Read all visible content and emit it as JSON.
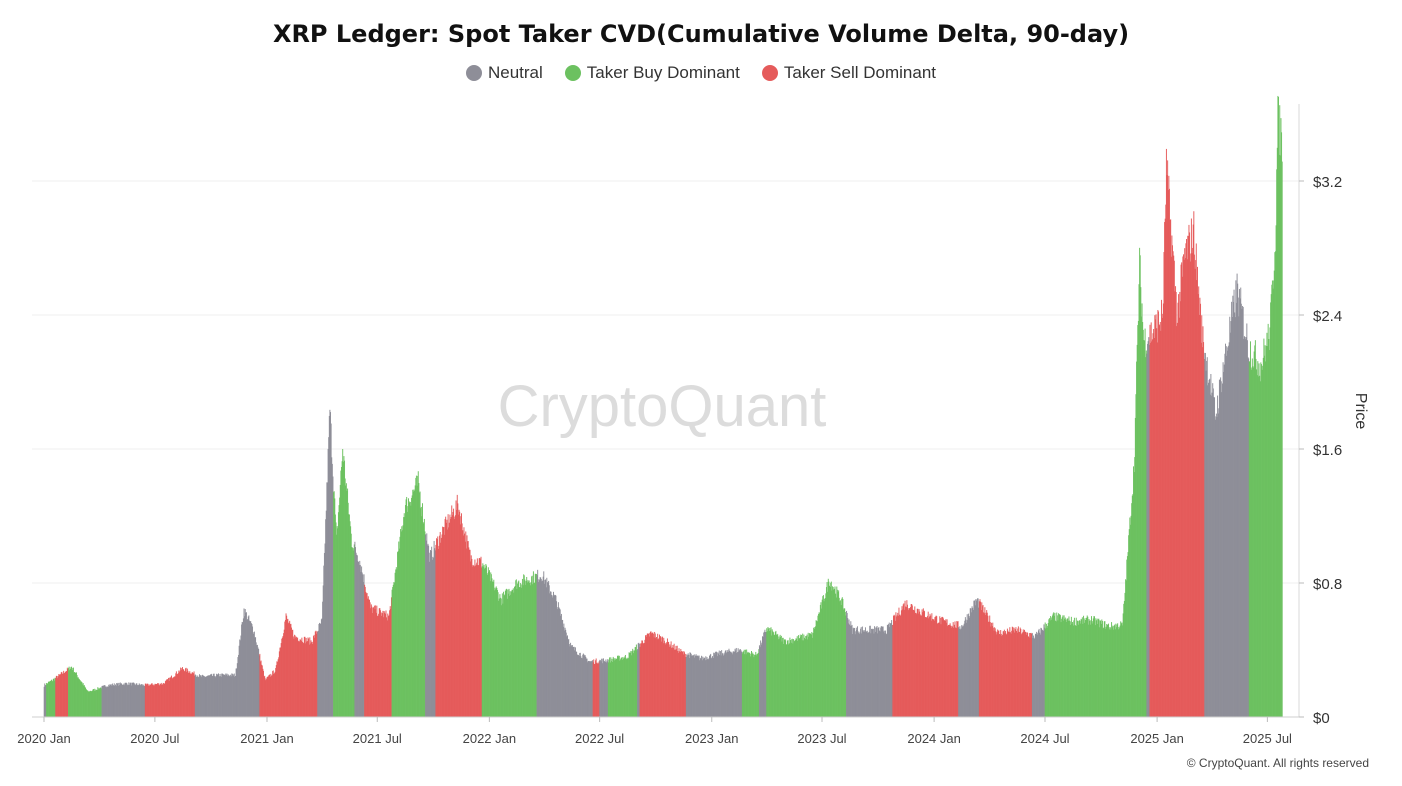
{
  "chart_data": {
    "type": "bar",
    "title": "XRP Ledger: Spot Taker CVD(Cumulative Volume Delta, 90-day)",
    "ylabel": "Price",
    "ylim": [
      0,
      3.6
    ],
    "y_ticks": [
      "$0",
      "$0.8",
      "$1.6",
      "$2.4",
      "$3.2"
    ],
    "y_tick_values": [
      0,
      0.8,
      1.6,
      2.4,
      3.2
    ],
    "x_ticks": [
      "2020 Jan",
      "2020 Jul",
      "2021 Jan",
      "2021 Jul",
      "2022 Jan",
      "2022 Jul",
      "2023 Jan",
      "2023 Jul",
      "2024 Jan",
      "2024 Jul",
      "2025 Jan",
      "2025 Jul"
    ],
    "x_tick_dates": [
      "2020-01-01",
      "2020-07-01",
      "2021-01-01",
      "2021-07-01",
      "2022-01-01",
      "2022-07-01",
      "2023-01-01",
      "2023-07-01",
      "2024-01-01",
      "2024-07-01",
      "2025-01-01",
      "2025-07-01"
    ],
    "x_range": [
      "2020-01-01",
      "2025-07-25"
    ],
    "grid": true,
    "legend_position": "top",
    "legend": [
      {
        "name": "Neutral",
        "color": "#8e8e98"
      },
      {
        "name": "Taker Buy Dominant",
        "color": "#6cc160"
      },
      {
        "name": "Taker Sell Dominant",
        "color": "#e55b5b"
      }
    ],
    "watermark": "CryptoQuant",
    "price_points": [
      [
        "2020-01-01",
        0.19
      ],
      [
        "2020-01-15",
        0.22
      ],
      [
        "2020-02-15",
        0.3
      ],
      [
        "2020-03-13",
        0.15
      ],
      [
        "2020-04-15",
        0.19
      ],
      [
        "2020-05-15",
        0.2
      ],
      [
        "2020-06-15",
        0.19
      ],
      [
        "2020-07-15",
        0.2
      ],
      [
        "2020-08-15",
        0.29
      ],
      [
        "2020-09-15",
        0.24
      ],
      [
        "2020-10-15",
        0.25
      ],
      [
        "2020-11-10",
        0.25
      ],
      [
        "2020-11-24",
        0.64
      ],
      [
        "2020-12-10",
        0.52
      ],
      [
        "2020-12-29",
        0.22
      ],
      [
        "2021-01-15",
        0.28
      ],
      [
        "2021-02-01",
        0.6
      ],
      [
        "2021-02-15",
        0.48
      ],
      [
        "2021-03-15",
        0.45
      ],
      [
        "2021-04-01",
        0.57
      ],
      [
        "2021-04-14",
        1.84
      ],
      [
        "2021-04-25",
        1.05
      ],
      [
        "2021-05-05",
        1.6
      ],
      [
        "2021-05-20",
        1.05
      ],
      [
        "2021-06-01",
        0.95
      ],
      [
        "2021-06-20",
        0.65
      ],
      [
        "2021-07-20",
        0.6
      ],
      [
        "2021-08-15",
        1.25
      ],
      [
        "2021-09-06",
        1.4
      ],
      [
        "2021-09-25",
        0.95
      ],
      [
        "2021-10-15",
        1.1
      ],
      [
        "2021-11-10",
        1.27
      ],
      [
        "2021-12-01",
        0.95
      ],
      [
        "2021-12-20",
        0.92
      ],
      [
        "2022-01-01",
        0.84
      ],
      [
        "2022-01-20",
        0.7
      ],
      [
        "2022-02-15",
        0.8
      ],
      [
        "2022-03-28",
        0.85
      ],
      [
        "2022-04-20",
        0.7
      ],
      [
        "2022-05-15",
        0.42
      ],
      [
        "2022-06-15",
        0.33
      ],
      [
        "2022-07-15",
        0.34
      ],
      [
        "2022-08-15",
        0.36
      ],
      [
        "2022-09-23",
        0.5
      ],
      [
        "2022-10-15",
        0.46
      ],
      [
        "2022-11-15",
        0.38
      ],
      [
        "2022-12-15",
        0.35
      ],
      [
        "2023-01-15",
        0.38
      ],
      [
        "2023-02-15",
        0.4
      ],
      [
        "2023-03-15",
        0.37
      ],
      [
        "2023-04-01",
        0.53
      ],
      [
        "2023-05-01",
        0.45
      ],
      [
        "2023-06-15",
        0.49
      ],
      [
        "2023-07-13",
        0.82
      ],
      [
        "2023-08-01",
        0.7
      ],
      [
        "2023-08-20",
        0.52
      ],
      [
        "2023-10-15",
        0.52
      ],
      [
        "2023-11-15",
        0.68
      ],
      [
        "2023-12-15",
        0.62
      ],
      [
        "2024-01-15",
        0.57
      ],
      [
        "2024-02-15",
        0.54
      ],
      [
        "2024-03-11",
        0.7
      ],
      [
        "2024-04-15",
        0.5
      ],
      [
        "2024-05-15",
        0.52
      ],
      [
        "2024-06-15",
        0.48
      ],
      [
        "2024-07-15",
        0.6
      ],
      [
        "2024-08-15",
        0.57
      ],
      [
        "2024-09-15",
        0.58
      ],
      [
        "2024-10-15",
        0.54
      ],
      [
        "2024-11-05",
        0.55
      ],
      [
        "2024-11-16",
        1.1
      ],
      [
        "2024-11-24",
        1.5
      ],
      [
        "2024-12-03",
        2.7
      ],
      [
        "2024-12-10",
        2.25
      ],
      [
        "2024-12-25",
        2.3
      ],
      [
        "2025-01-10",
        2.4
      ],
      [
        "2025-01-16",
        3.28
      ],
      [
        "2025-02-03",
        2.4
      ],
      [
        "2025-02-15",
        2.75
      ],
      [
        "2025-03-02",
        2.9
      ],
      [
        "2025-03-15",
        2.3
      ],
      [
        "2025-04-07",
        1.8
      ],
      [
        "2025-04-20",
        2.1
      ],
      [
        "2025-05-12",
        2.55
      ],
      [
        "2025-06-01",
        2.2
      ],
      [
        "2025-06-20",
        2.1
      ],
      [
        "2025-07-05",
        2.3
      ],
      [
        "2025-07-14",
        2.9
      ],
      [
        "2025-07-18",
        3.55
      ],
      [
        "2025-07-25",
        3.45
      ]
    ],
    "regimes": [
      [
        "2020-01-01",
        "2020-01-05",
        "neutral"
      ],
      [
        "2020-01-05",
        "2020-01-20",
        "buy"
      ],
      [
        "2020-01-20",
        "2020-02-10",
        "sell"
      ],
      [
        "2020-02-10",
        "2020-04-05",
        "buy"
      ],
      [
        "2020-04-05",
        "2020-06-15",
        "neutral"
      ],
      [
        "2020-06-15",
        "2020-09-05",
        "sell"
      ],
      [
        "2020-09-05",
        "2020-12-20",
        "neutral"
      ],
      [
        "2020-12-20",
        "2021-01-25",
        "sell"
      ],
      [
        "2021-01-25",
        "2021-03-25",
        "sell"
      ],
      [
        "2021-03-25",
        "2021-04-20",
        "neutral"
      ],
      [
        "2021-04-20",
        "2021-05-25",
        "buy"
      ],
      [
        "2021-05-25",
        "2021-06-10",
        "neutral"
      ],
      [
        "2021-06-10",
        "2021-07-25",
        "sell"
      ],
      [
        "2021-07-25",
        "2021-09-18",
        "buy"
      ],
      [
        "2021-09-18",
        "2021-10-05",
        "neutral"
      ],
      [
        "2021-10-05",
        "2021-12-20",
        "sell"
      ],
      [
        "2021-12-20",
        "2022-03-20",
        "buy"
      ],
      [
        "2022-03-20",
        "2022-06-20",
        "neutral"
      ],
      [
        "2022-06-20",
        "2022-07-01",
        "sell"
      ],
      [
        "2022-07-01",
        "2022-07-15",
        "neutral"
      ],
      [
        "2022-07-15",
        "2022-09-01",
        "buy"
      ],
      [
        "2022-09-01",
        "2022-09-05",
        "neutral"
      ],
      [
        "2022-09-05",
        "2022-11-20",
        "sell"
      ],
      [
        "2022-11-20",
        "2023-02-20",
        "neutral"
      ],
      [
        "2023-02-20",
        "2023-03-20",
        "buy"
      ],
      [
        "2023-03-20",
        "2023-04-01",
        "neutral"
      ],
      [
        "2023-04-01",
        "2023-08-10",
        "buy"
      ],
      [
        "2023-08-10",
        "2023-10-25",
        "neutral"
      ],
      [
        "2023-10-25",
        "2024-02-10",
        "sell"
      ],
      [
        "2024-02-10",
        "2024-03-15",
        "neutral"
      ],
      [
        "2024-03-15",
        "2024-06-10",
        "sell"
      ],
      [
        "2024-06-10",
        "2024-07-01",
        "neutral"
      ],
      [
        "2024-07-01",
        "2024-12-15",
        "buy"
      ],
      [
        "2024-12-15",
        "2024-12-20",
        "neutral"
      ],
      [
        "2024-12-20",
        "2025-03-20",
        "sell"
      ],
      [
        "2025-03-20",
        "2025-06-01",
        "neutral"
      ],
      [
        "2025-06-01",
        "2025-07-25",
        "buy"
      ]
    ]
  },
  "footer": {
    "copyright": "© CryptoQuant. All rights reserved"
  }
}
